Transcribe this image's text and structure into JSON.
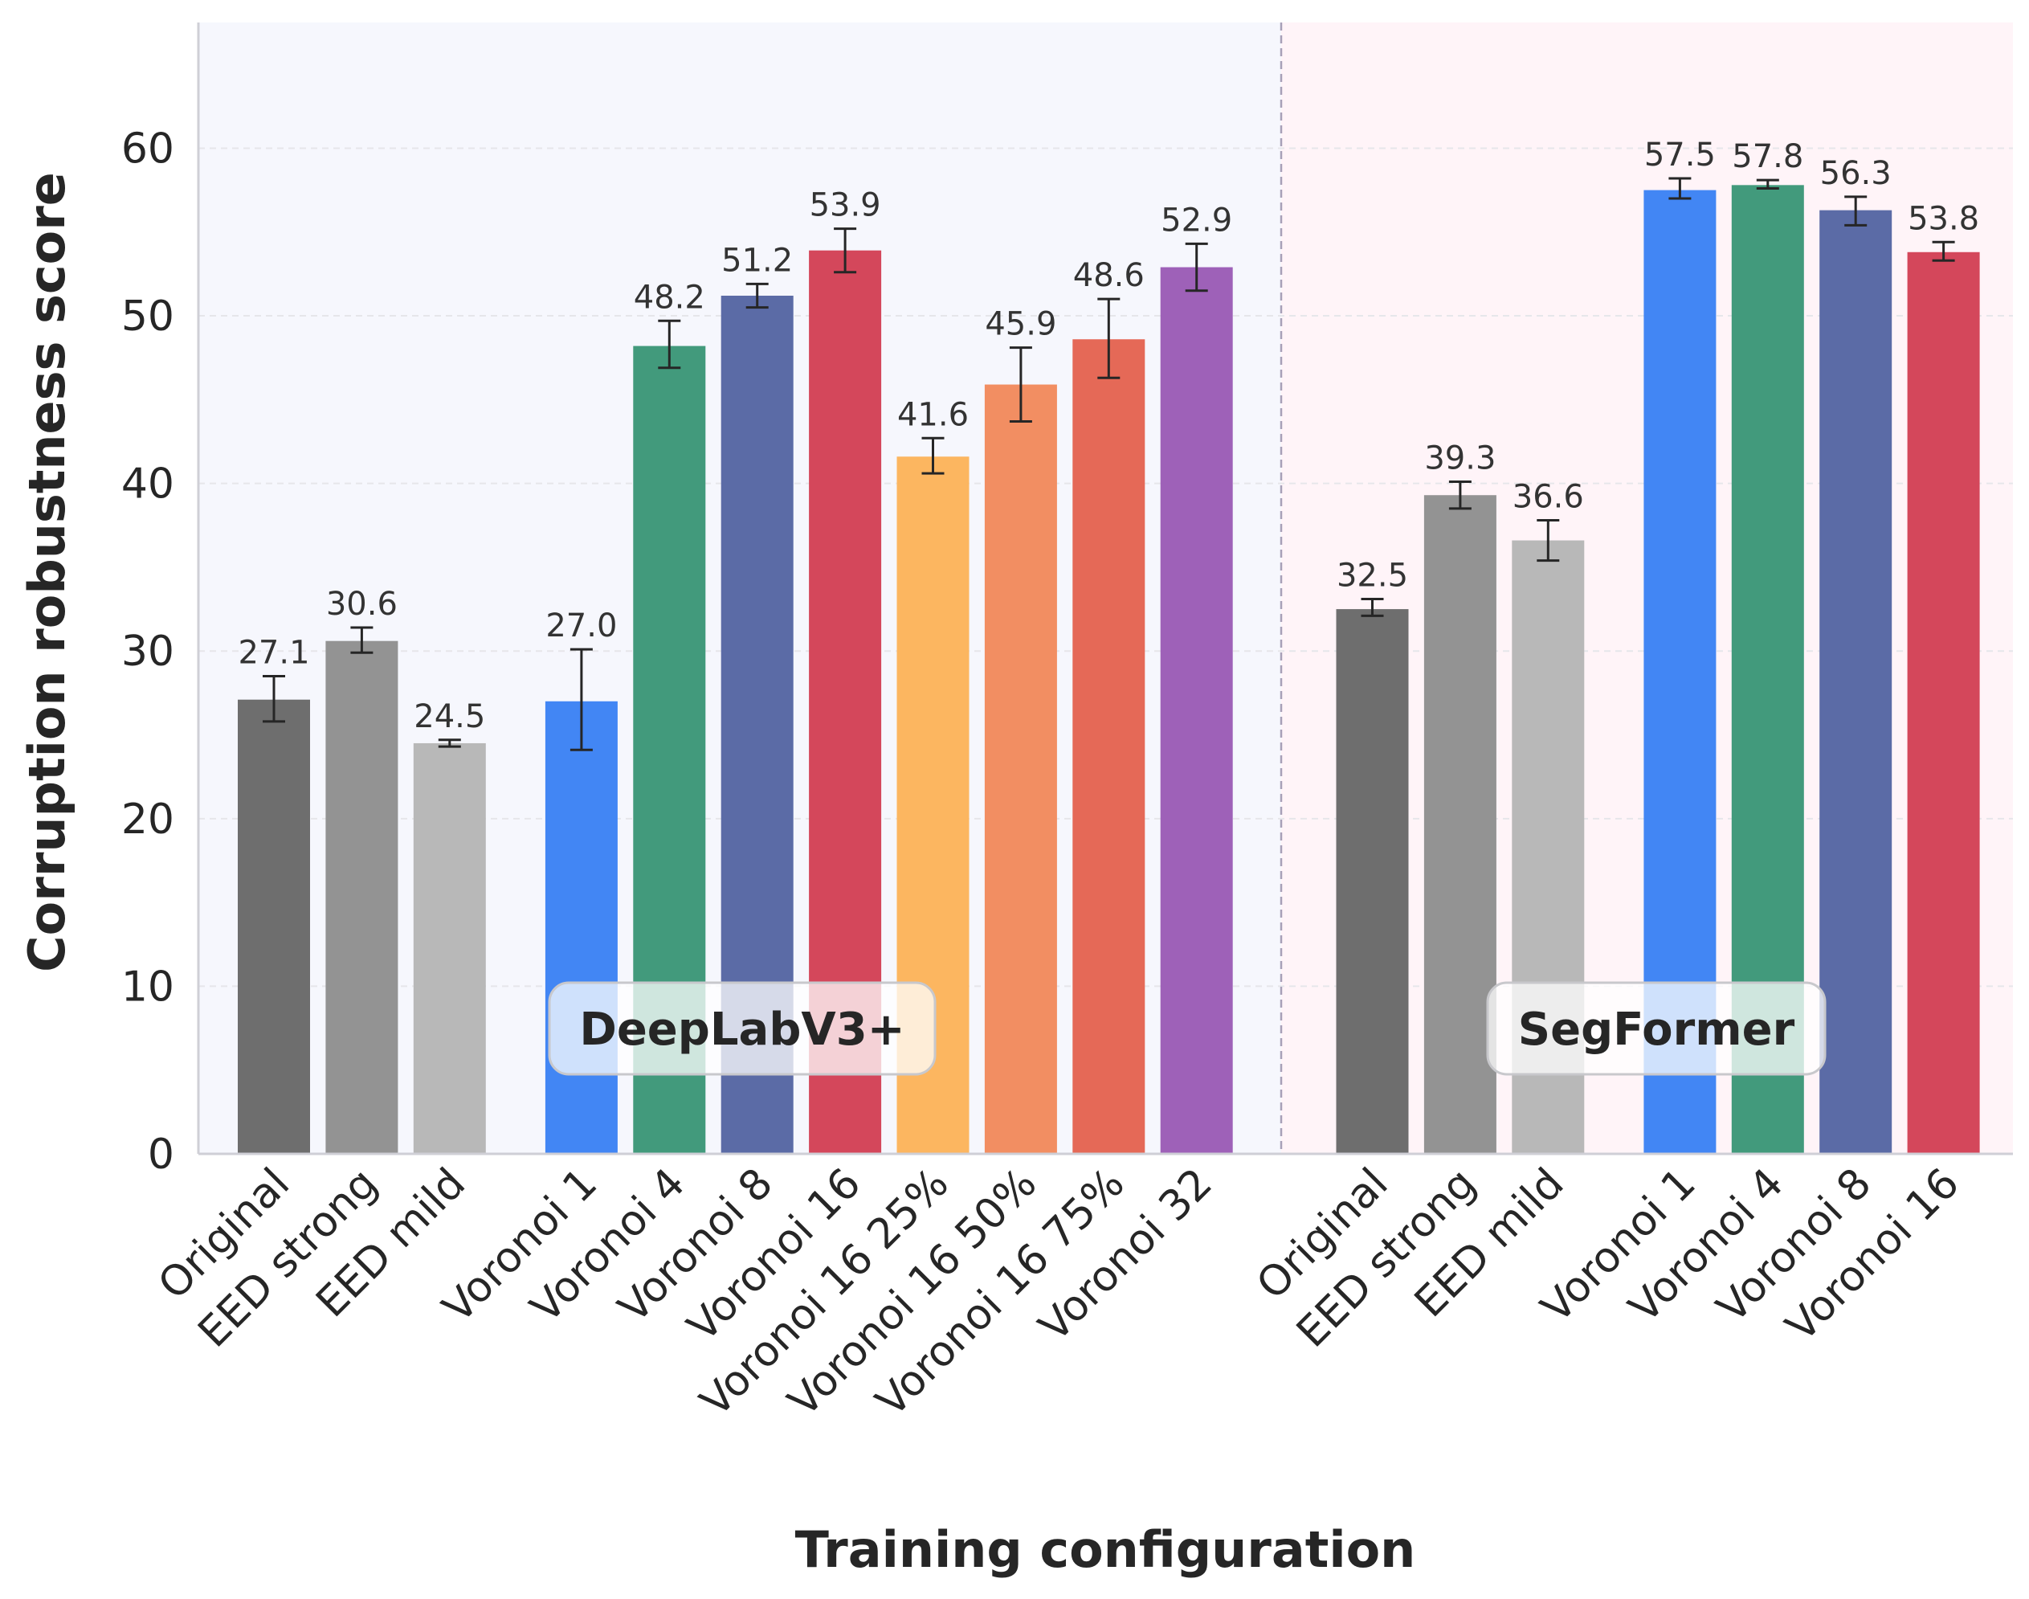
{
  "chart_data": {
    "type": "bar",
    "title": "",
    "xlabel": "Training configuration",
    "ylabel": "Corruption robustness score",
    "ylim": [
      0,
      67.5
    ],
    "yticks": [
      0,
      10,
      20,
      30,
      40,
      50,
      60
    ],
    "grid": true,
    "error_bars": true,
    "groups": [
      {
        "name": "DeepLabV3+",
        "background": "#f6f7fd",
        "bars": [
          {
            "label": "Original",
            "value": 27.1,
            "err_low": 25.8,
            "err_high": 28.5,
            "color": "#6e6e6e"
          },
          {
            "label": "EED strong",
            "value": 30.6,
            "err_low": 29.9,
            "err_high": 31.4,
            "color": "#939393"
          },
          {
            "label": "EED mild",
            "value": 24.5,
            "err_low": 24.3,
            "err_high": 24.7,
            "color": "#b8b8b8"
          },
          {
            "label": "Voronoi 1",
            "value": 27.0,
            "err_low": 24.1,
            "err_high": 30.1,
            "color": "#4286f4"
          },
          {
            "label": "Voronoi 4",
            "value": 48.2,
            "err_low": 46.9,
            "err_high": 49.7,
            "color": "#429a7c"
          },
          {
            "label": "Voronoi 8",
            "value": 51.2,
            "err_low": 50.5,
            "err_high": 51.9,
            "color": "#5b6ba6"
          },
          {
            "label": "Voronoi 16",
            "value": 53.9,
            "err_low": 52.6,
            "err_high": 55.2,
            "color": "#d4475b"
          },
          {
            "label": "Voronoi 16 25%",
            "value": 41.6,
            "err_low": 40.6,
            "err_high": 42.7,
            "color": "#fcb660"
          },
          {
            "label": "Voronoi 16 50%",
            "value": 45.9,
            "err_low": 43.7,
            "err_high": 48.1,
            "color": "#f28e62"
          },
          {
            "label": "Voronoi 16 75%",
            "value": 48.6,
            "err_low": 46.3,
            "err_high": 51.0,
            "color": "#e56957"
          },
          {
            "label": "Voronoi 32",
            "value": 52.9,
            "err_low": 51.5,
            "err_high": 54.3,
            "color": "#9e61b8"
          }
        ]
      },
      {
        "name": "SegFormer",
        "background": "#fff4f8",
        "bars": [
          {
            "label": "Original",
            "value": 32.5,
            "err_low": 32.1,
            "err_high": 33.1,
            "color": "#6e6e6e"
          },
          {
            "label": "EED strong",
            "value": 39.3,
            "err_low": 38.5,
            "err_high": 40.1,
            "color": "#939393"
          },
          {
            "label": "EED mild",
            "value": 36.6,
            "err_low": 35.4,
            "err_high": 37.8,
            "color": "#b8b8b8"
          },
          {
            "label": "Voronoi 1",
            "value": 57.5,
            "err_low": 57.0,
            "err_high": 58.2,
            "color": "#4286f4"
          },
          {
            "label": "Voronoi 4",
            "value": 57.8,
            "err_low": 57.6,
            "err_high": 58.1,
            "color": "#429a7c"
          },
          {
            "label": "Voronoi 8",
            "value": 56.3,
            "err_low": 55.4,
            "err_high": 57.1,
            "color": "#5b6ba6"
          },
          {
            "label": "Voronoi 16",
            "value": 53.8,
            "err_low": 53.3,
            "err_high": 54.4,
            "color": "#d4475b"
          }
        ]
      }
    ]
  }
}
